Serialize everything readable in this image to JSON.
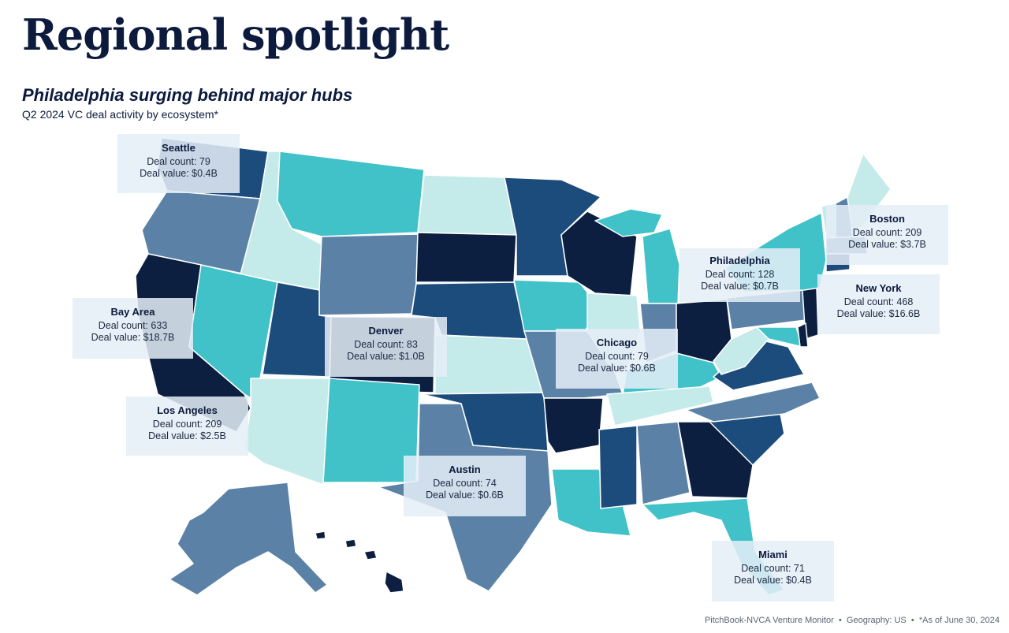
{
  "header": {
    "title": "Regional spotlight",
    "subtitle": "Philadelphia surging behind major hubs",
    "caption": "Q2 2024 VC deal activity by ecosystem*"
  },
  "palette": {
    "navy": "#0c1f40",
    "dark_blue": "#1c4c7c",
    "slate": "#5b82a6",
    "teal": "#40c2c8",
    "pale": "#c4ebea",
    "border": "#ffffff"
  },
  "callouts": [
    {
      "name": "Seattle",
      "count_label": "Deal count: 79",
      "value_label": "Deal value: $0.4B"
    },
    {
      "name": "Bay Area",
      "count_label": "Deal count: 633",
      "value_label": "Deal value: $18.7B"
    },
    {
      "name": "Los Angeles",
      "count_label": "Deal count: 209",
      "value_label": "Deal value: $2.5B"
    },
    {
      "name": "Denver",
      "count_label": "Deal count: 83",
      "value_label": "Deal value: $1.0B"
    },
    {
      "name": "Austin",
      "count_label": "Deal count: 74",
      "value_label": "Deal value: $0.6B"
    },
    {
      "name": "Chicago",
      "count_label": "Deal count: 79",
      "value_label": "Deal value: $0.6B"
    },
    {
      "name": "Philadelphia",
      "count_label": "Deal count: 128",
      "value_label": "Deal value: $0.7B"
    },
    {
      "name": "Boston",
      "count_label": "Deal count: 209",
      "value_label": "Deal value: $3.7B"
    },
    {
      "name": "New York",
      "count_label": "Deal count: 468",
      "value_label": "Deal value: $16.6B"
    },
    {
      "name": "Miami",
      "count_label": "Deal count: 71",
      "value_label": "Deal value: $0.4B"
    }
  ],
  "footer": {
    "source": "PitchBook-NVCA Venture Monitor",
    "separator": "•",
    "geography": "Geography: US",
    "note": "*As of June 30, 2024"
  }
}
